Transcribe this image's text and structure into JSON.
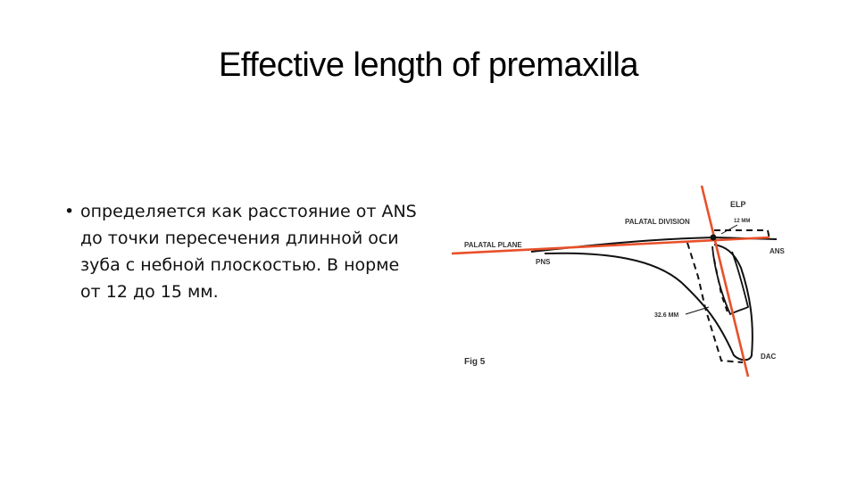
{
  "slide": {
    "title": "Effective length of premaxilla",
    "bullet": {
      "marker": "•",
      "text": "определяется как расстояние от ANS до точки пересечения длинной оси зуба с небной плоскостью. В норме от 12 до 15 мм."
    }
  },
  "figure": {
    "labels": {
      "elp": "ELP",
      "palatal_division": "PALATAL DIVISION",
      "measurement_top": "12 MM",
      "palatal_plane": "PALATAL PLANE",
      "pns": "PNS",
      "ans": "ANS",
      "measurement_side": "32.6 MM",
      "dac": "DAC",
      "fig": "Fig 5"
    },
    "colors": {
      "line_red": "#e8502a",
      "outline": "#111111"
    }
  }
}
